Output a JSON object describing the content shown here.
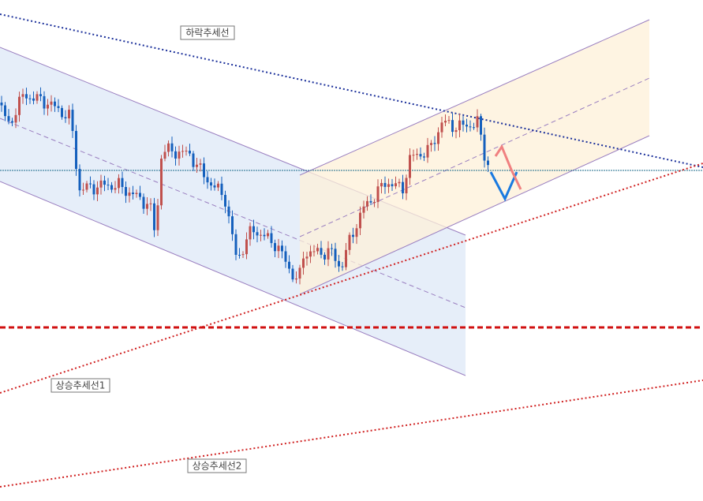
{
  "annotations": {
    "downtrend": "하락추세선",
    "uptrend1": "상승추세선1",
    "uptrend2": "상승추세선2"
  }
}
